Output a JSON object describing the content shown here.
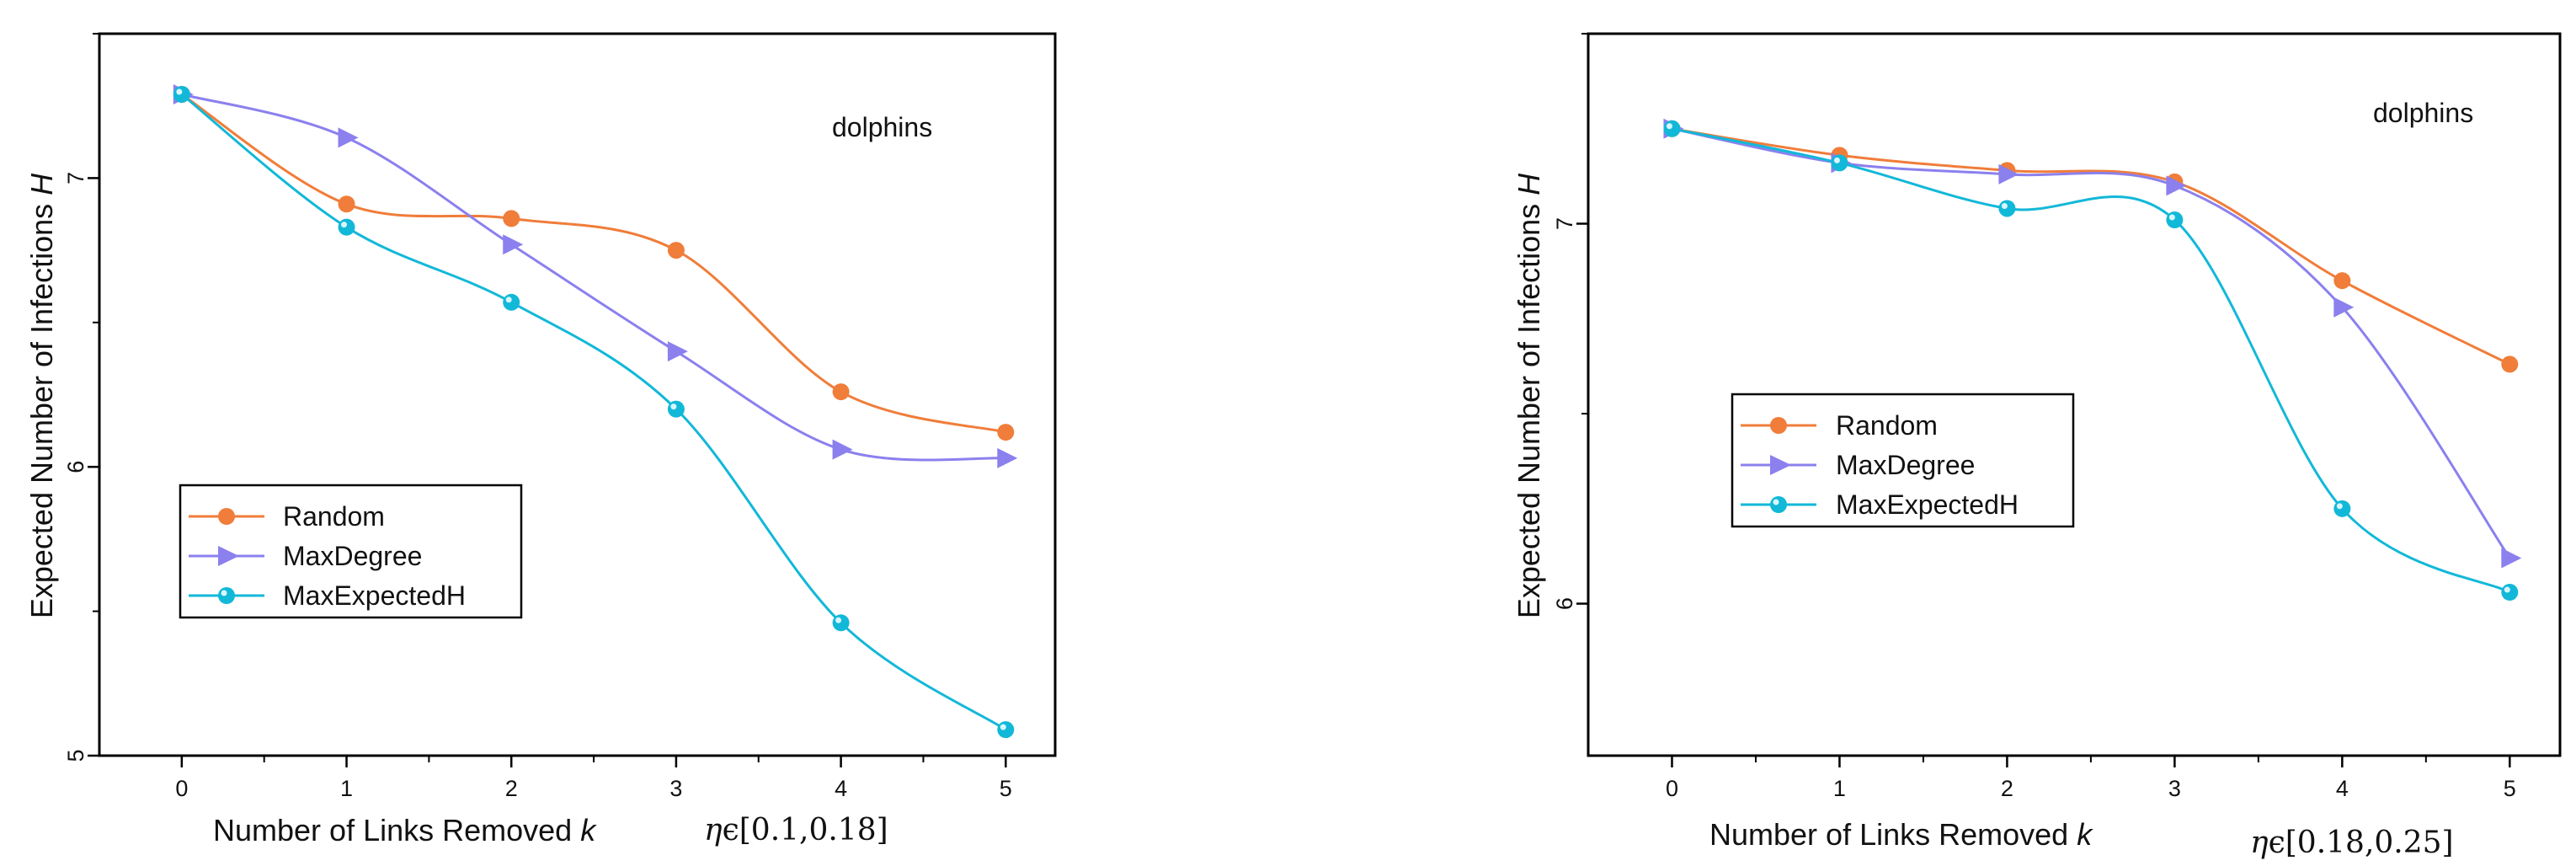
{
  "chart_data": [
    {
      "type": "line",
      "x": [
        0,
        1,
        2,
        3,
        4,
        5
      ],
      "series": [
        {
          "name": "Random",
          "values": [
            7.29,
            6.91,
            6.86,
            6.75,
            6.26,
            6.12
          ],
          "color": "#f07d3a",
          "marker": "circle"
        },
        {
          "name": "MaxDegree",
          "values": [
            7.29,
            7.14,
            6.77,
            6.4,
            6.06,
            6.03
          ],
          "color": "#8b80ee",
          "marker": "triangle-right"
        },
        {
          "name": "MaxExpectedH",
          "values": [
            7.29,
            6.83,
            6.57,
            6.2,
            5.46,
            5.09
          ],
          "color": "#12b8d8",
          "marker": "circle-highlight"
        }
      ],
      "xlabel_text": "Number of Links Removed ",
      "xlabel_var": "k",
      "ylabel_text": "Expected Number of Infections ",
      "ylabel_var": "H",
      "yticks": [
        5,
        6,
        7
      ],
      "xlim": [
        -0.5,
        5.3
      ],
      "ylim": [
        5.0,
        7.5
      ],
      "annotation": "dolphins",
      "eta_var": "η",
      "eta_range": "ϵ[0.1,0.18]",
      "legend_position": "lower-left"
    },
    {
      "type": "line",
      "x": [
        0,
        1,
        2,
        3,
        4,
        5
      ],
      "series": [
        {
          "name": "Random",
          "values": [
            7.25,
            7.18,
            7.14,
            7.11,
            6.85,
            6.63
          ],
          "color": "#f07d3a",
          "marker": "circle"
        },
        {
          "name": "MaxDegree",
          "values": [
            7.25,
            7.16,
            7.13,
            7.1,
            6.78,
            6.12
          ],
          "color": "#8b80ee",
          "marker": "triangle-right"
        },
        {
          "name": "MaxExpectedH",
          "values": [
            7.25,
            7.16,
            7.04,
            7.01,
            6.25,
            6.03
          ],
          "color": "#12b8d8",
          "marker": "circle-highlight"
        }
      ],
      "xlabel_text": "Number of Links Removed ",
      "xlabel_var": "k",
      "ylabel_text": "Expected Number of Infections ",
      "ylabel_var": "H",
      "yticks": [
        6,
        7
      ],
      "xlim": [
        -0.5,
        5.3
      ],
      "ylim": [
        5.6,
        7.5
      ],
      "annotation": "dolphins",
      "eta_var": "η",
      "eta_range": "ϵ[0.18,0.25]",
      "legend_position": "center-left"
    }
  ]
}
